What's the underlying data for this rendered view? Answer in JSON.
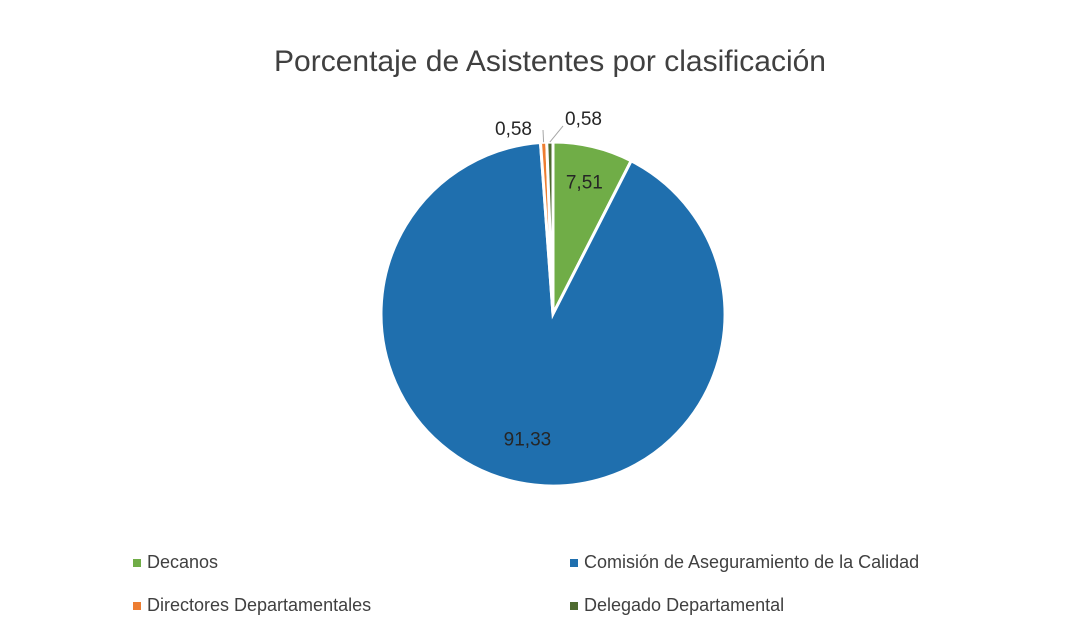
{
  "chart_data": {
    "type": "pie",
    "title": "Porcentaje de Asistentes por clasificación",
    "categories": [
      "Decanos",
      "Comisión de Aseguramiento de la Calidad",
      "Directores Departamentales",
      "Delegado Departamental"
    ],
    "values": [
      7.51,
      91.33,
      0.58,
      0.58
    ],
    "value_labels": [
      "7,51",
      "91,33",
      "0,58",
      "0,58"
    ],
    "colors": [
      "#70ad47",
      "#1f6fae",
      "#ed7d31",
      "#4e6b30"
    ],
    "legend": "bottom"
  }
}
